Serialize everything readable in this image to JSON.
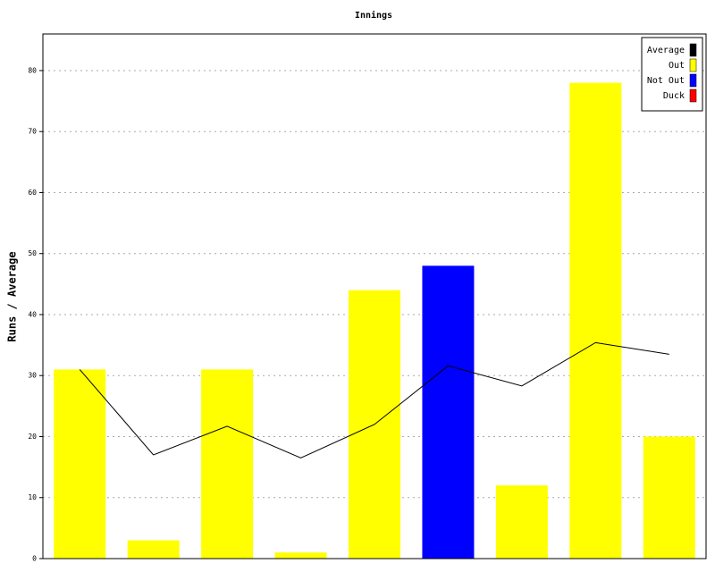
{
  "chart_data": {
    "type": "bar",
    "title": "Innings",
    "y_label": "Runs / Average",
    "categories": [
      null,
      null,
      null,
      null,
      null,
      null,
      null,
      null,
      null
    ],
    "series": [
      {
        "name": "Average",
        "type": "line",
        "color": "#000000",
        "values": [
          31,
          17,
          21.7,
          16.5,
          22,
          31.6,
          28.3,
          35.4,
          33.5
        ]
      },
      {
        "name": "Out",
        "type": "bar",
        "color": "#ffff00",
        "values": [
          31,
          3,
          31,
          1,
          44,
          null,
          12,
          78,
          20
        ]
      },
      {
        "name": "Not Out",
        "type": "bar",
        "color": "#0000ff",
        "values": [
          null,
          null,
          null,
          null,
          null,
          48,
          null,
          null,
          null
        ]
      },
      {
        "name": "Duck",
        "type": "bar",
        "color": "#ff0000",
        "values": [
          null,
          null,
          null,
          null,
          null,
          null,
          null,
          null,
          null
        ]
      }
    ],
    "ylim": [
      0,
      86
    ],
    "yticks": [
      0,
      10,
      20,
      30,
      40,
      50,
      60,
      70,
      80
    ],
    "grid": true,
    "legend": "top-right"
  }
}
